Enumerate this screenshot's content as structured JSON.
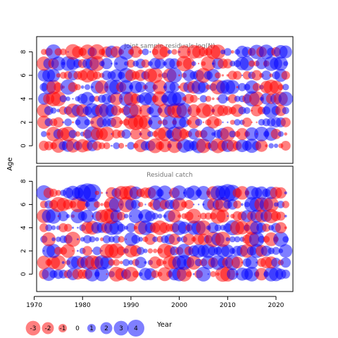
{
  "chart_data": [
    {
      "type": "scatter",
      "title": "Joint sample residuals log(N)",
      "ylabel": "Age",
      "xlim": [
        1970.5,
        2023.5
      ],
      "ylim": [
        -1.5,
        9.3
      ],
      "xticks": [
        1970,
        1980,
        1990,
        2000,
        2010,
        2020
      ],
      "yticks": [
        0,
        2,
        4,
        6,
        8
      ],
      "ages": [
        0,
        1,
        2,
        3,
        4,
        5,
        6,
        7,
        8
      ],
      "years": [
        1972,
        2022
      ],
      "pos_color": "#0000ff",
      "neg_color": "#ff0000",
      "seed": 11
    },
    {
      "type": "scatter",
      "title": "Residual catch",
      "xlabel": "Year",
      "xlim": [
        1970.5,
        2023.5
      ],
      "ylim": [
        -1.5,
        9.3
      ],
      "xticks": [
        1970,
        1980,
        1990,
        2000,
        2010,
        2020
      ],
      "yticks": [
        0,
        2,
        4,
        6,
        8
      ],
      "ages": [
        0,
        1,
        2,
        3,
        4,
        5,
        6,
        7
      ],
      "years": [
        1972,
        2022
      ],
      "pos_color": "#0000ff",
      "neg_color": "#ff0000",
      "seed": 29
    }
  ],
  "legend": {
    "title": "Year",
    "items": [
      {
        "label": "-3",
        "value": -3
      },
      {
        "label": "-2",
        "value": -2
      },
      {
        "label": "-1",
        "value": -1
      },
      {
        "label": "0",
        "value": 0
      },
      {
        "label": "1",
        "value": 1
      },
      {
        "label": "2",
        "value": 2
      },
      {
        "label": "3",
        "value": 3
      },
      {
        "label": "4",
        "value": 4
      }
    ]
  }
}
